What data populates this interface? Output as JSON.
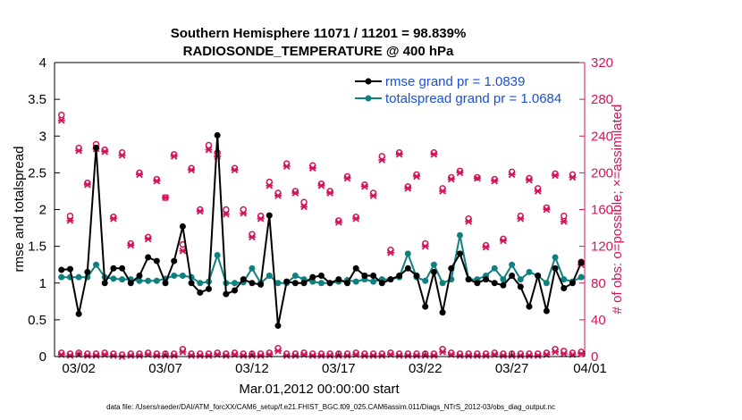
{
  "chart_data": {
    "type": "line",
    "title": "Southern Hemisphere 11071 / 11201 = 98.839%",
    "subtitle": "RADIOSONDE_TEMPERATURE @ 400 hPa",
    "xlabel": "Mar.01,2012 00:00:00 start",
    "ylabel": "rmse and totalspread",
    "ylabel_right": "# of obs: o=possible; ×=assimilated",
    "footnote": "data file: /Users/raeder/DAI/ATM_forcXX/CAM6_setup/f.e21.FHIST_BGC.f09_025.CAM6assim.011/Diags_NTrS_2012-03/obs_diag_output.nc",
    "x_range": [
      0.6,
      31.2
    ],
    "xticks": [
      {
        "x": 2,
        "label": "03/02"
      },
      {
        "x": 7,
        "label": "03/07"
      },
      {
        "x": 12,
        "label": "03/12"
      },
      {
        "x": 17,
        "label": "03/17"
      },
      {
        "x": 22,
        "label": "03/22"
      },
      {
        "x": 27,
        "label": "03/27"
      },
      {
        "x": 32,
        "label": "04/01"
      }
    ],
    "ylim": [
      0,
      4
    ],
    "yticks": [
      "0",
      "0.5",
      "1",
      "1.5",
      "2",
      "2.5",
      "3",
      "3.5",
      "4"
    ],
    "y2lim": [
      0,
      320
    ],
    "y2ticks": [
      "0",
      "40",
      "80",
      "120",
      "160",
      "200",
      "240",
      "280",
      "320"
    ],
    "grid": false,
    "legend_position": "top-right",
    "colors": {
      "rmse": "#000000",
      "spread": "#0e8080",
      "obs": "#d4145a",
      "legend_text": "#1a4fd6",
      "right_axis": "#d4145a"
    },
    "x": [
      1.0,
      1.5,
      2.0,
      2.5,
      3.0,
      3.5,
      4.0,
      4.5,
      5.0,
      5.5,
      6.0,
      6.5,
      7.0,
      7.5,
      8.0,
      8.5,
      9.0,
      9.5,
      10.0,
      10.5,
      11.0,
      11.5,
      12.0,
      12.5,
      13.0,
      13.5,
      14.0,
      14.5,
      15.0,
      15.5,
      16.0,
      16.5,
      17.0,
      17.5,
      18.0,
      18.5,
      19.0,
      19.5,
      20.0,
      20.5,
      21.0,
      21.5,
      22.0,
      22.5,
      23.0,
      23.5,
      24.0,
      24.5,
      25.0,
      25.5,
      26.0,
      26.5,
      27.0,
      27.5,
      28.0,
      28.5,
      29.0,
      29.5,
      30.0,
      30.5,
      31.0
    ],
    "series": [
      {
        "name": "rmse grand pr = 1.0839",
        "axis": "left",
        "style": "line-marker",
        "values": [
          1.18,
          1.19,
          0.58,
          1.15,
          2.84,
          1.0,
          1.2,
          1.2,
          1.0,
          1.1,
          1.35,
          1.3,
          1.0,
          1.3,
          1.77,
          1.0,
          0.87,
          0.92,
          3.01,
          0.85,
          0.9,
          1.05,
          1.0,
          0.98,
          1.92,
          0.42,
          1.02,
          1.0,
          1.0,
          1.08,
          1.1,
          1.0,
          1.05,
          1.0,
          1.2,
          1.1,
          1.1,
          1.0,
          1.05,
          1.1,
          1.2,
          1.1,
          0.68,
          1.15,
          0.6,
          1.2,
          1.4,
          1.05,
          1.0,
          1.05,
          1.0,
          0.97,
          1.1,
          0.95,
          0.68,
          1.1,
          0.62,
          1.2,
          0.93,
          1.0,
          1.28
        ]
      },
      {
        "name": "totalspread grand pr = 1.0684",
        "axis": "left",
        "style": "line-marker",
        "values": [
          1.08,
          1.08,
          1.08,
          1.08,
          1.25,
          1.08,
          1.06,
          1.05,
          1.05,
          1.03,
          1.03,
          1.03,
          1.06,
          1.1,
          1.1,
          1.08,
          1.0,
          1.02,
          1.38,
          1.0,
          1.0,
          1.01,
          1.2,
          1.0,
          1.1,
          1.0,
          1.0,
          1.1,
          1.05,
          1.02,
          1.0,
          1.0,
          1.02,
          1.04,
          1.02,
          1.05,
          1.02,
          1.05,
          1.05,
          1.08,
          1.4,
          1.08,
          1.03,
          1.25,
          1.0,
          1.05,
          1.65,
          1.05,
          1.05,
          1.1,
          1.2,
          1.05,
          1.25,
          1.05,
          1.15,
          1.1,
          1.0,
          1.35,
          1.05,
          1.02,
          1.08
        ]
      },
      {
        "name": "obs possible",
        "axis": "right",
        "style": "marker-o",
        "values": [
          4,
          3,
          4,
          3,
          3,
          4,
          3,
          2,
          3,
          3,
          4,
          3,
          3,
          3,
          8,
          3,
          3,
          3,
          4,
          3,
          4,
          3,
          3,
          3,
          4,
          9,
          3,
          3,
          4,
          3,
          3,
          3,
          3,
          3,
          4,
          3,
          3,
          3,
          4,
          3,
          3,
          3,
          3,
          3,
          8,
          4,
          3,
          3,
          3,
          3,
          4,
          3,
          3,
          3,
          3,
          3,
          4,
          8,
          6,
          4,
          5
        ]
      },
      {
        "name": "obs assimilated",
        "axis": "right",
        "style": "marker-x",
        "values": [
          2,
          1,
          2,
          1,
          1,
          2,
          1,
          0,
          1,
          1,
          2,
          1,
          1,
          1,
          5,
          1,
          1,
          1,
          2,
          1,
          2,
          1,
          1,
          1,
          2,
          6,
          1,
          1,
          2,
          1,
          1,
          1,
          1,
          1,
          2,
          1,
          1,
          1,
          2,
          1,
          1,
          1,
          1,
          1,
          5,
          2,
          1,
          1,
          1,
          1,
          2,
          1,
          1,
          1,
          1,
          1,
          2,
          5,
          3,
          2,
          3
        ]
      }
    ],
    "obs_upper": {
      "x": [
        1.0,
        1.5,
        2.0,
        2.5,
        3.0,
        3.5,
        4.0,
        4.5,
        5.0,
        5.5,
        6.0,
        6.5,
        7.0,
        7.5,
        8.0,
        8.5,
        9.0,
        9.5,
        10.0,
        10.5,
        11.0,
        11.5,
        12.0,
        12.5,
        13.0,
        13.5,
        14.0,
        14.5,
        15.0,
        15.5,
        16.0,
        16.5,
        17.0,
        17.5,
        18.0,
        18.5,
        19.0,
        19.5,
        20.0,
        20.5,
        21.0,
        21.5,
        22.0,
        22.5,
        23.0,
        23.5,
        24.0,
        24.5,
        25.0,
        25.5,
        26.0,
        26.5,
        27.0,
        27.5,
        28.0,
        28.5,
        29.0,
        29.5,
        30.0,
        30.5,
        31.0
      ],
      "possible": [
        263,
        153,
        227,
        189,
        231,
        225,
        152,
        222,
        123,
        200,
        130,
        193,
        173,
        220,
        122,
        205,
        160,
        230,
        222,
        160,
        205,
        160,
        133,
        153,
        190,
        178,
        210,
        180,
        168,
        208,
        188,
        180,
        148,
        196,
        152,
        187,
        178,
        218,
        116,
        222,
        185,
        198,
        123,
        222,
        183,
        195,
        202,
        150,
        195,
        121,
        193,
        128,
        201,
        153,
        194,
        183,
        162,
        199,
        153,
        198,
        103
      ],
      "assimilated": [
        257,
        148,
        224,
        187,
        226,
        223,
        150,
        219,
        121,
        198,
        128,
        191,
        173,
        218,
        115,
        203,
        158,
        225,
        218,
        155,
        203,
        156,
        130,
        150,
        186,
        175,
        207,
        178,
        163,
        205,
        186,
        178,
        146,
        194,
        150,
        185,
        175,
        214,
        113,
        220,
        183,
        196,
        120,
        220,
        180,
        193,
        200,
        147,
        194,
        119,
        191,
        126,
        198,
        150,
        192,
        180,
        160,
        197,
        147,
        195,
        100
      ]
    }
  }
}
